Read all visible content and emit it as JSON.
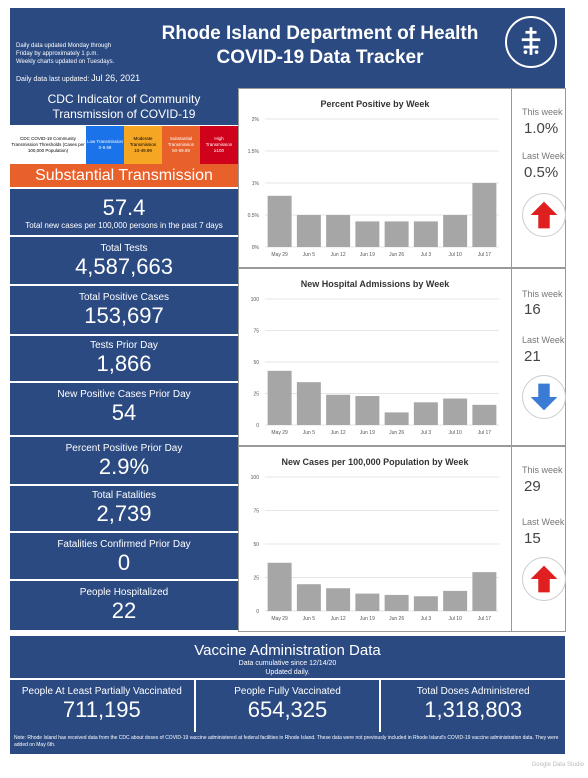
{
  "header": {
    "note1": "Daily data updated Monday through",
    "note2": "Friday by approximately 1 p.m.",
    "note3": "Weekly charts updated on Tuesdays.",
    "updated_label": "Daily data last updated:",
    "updated_date": "Jul 26, 2021",
    "title1": "Rhode Island Department of Health",
    "title2": "COVID-19 Data Tracker",
    "logo_text": "RHODE ISLAND DEPARTMENT OF HEALTH"
  },
  "cdc": {
    "title1": "CDC Indicator of Community",
    "title2": "Transmission of COVID-19",
    "thresholds_label": "CDC COVID-19 Community Transmission Thresholds (Cases per 100,000 Population)",
    "levels": [
      {
        "name": "Low Transmission",
        "range": "0-9.99",
        "color": "#1a73e8"
      },
      {
        "name": "Moderate Transmission",
        "range": "10-49.99",
        "color": "#f5a623"
      },
      {
        "name": "Substantial Transmission",
        "range": "50-99.99",
        "color": "#e8602a"
      },
      {
        "name": "High Transmission",
        "range": "≥100",
        "color": "#d0021b"
      }
    ],
    "status": "Substantial Transmission",
    "rate": "57.4",
    "rate_label": "Total new cases per 100,000 persons in the past 7 days"
  },
  "stats": [
    {
      "label": "Total Tests",
      "value": "4,587,663"
    },
    {
      "label": "Total Positive Cases",
      "value": "153,697"
    },
    {
      "label": "Tests Prior Day",
      "value": "1,866"
    },
    {
      "label": "New Positive Cases Prior Day",
      "value": "54"
    },
    {
      "label": "Percent Positive Prior Day",
      "value": "2.9%"
    },
    {
      "label": "Total Fatalities",
      "value": "2,739"
    },
    {
      "label": "Fatalities Confirmed Prior Day",
      "value": "0"
    },
    {
      "label": "People Hospitalized",
      "value": "22"
    }
  ],
  "side": [
    {
      "this_label": "This week",
      "this_value": "1.0%",
      "last_label": "Last Week",
      "last_value": "0.5%",
      "direction": "up"
    },
    {
      "this_label": "This week",
      "this_value": "16",
      "last_label": "Last Week",
      "last_value": "21",
      "direction": "down"
    },
    {
      "this_label": "This week",
      "this_value": "29",
      "last_label": "Last Week",
      "last_value": "15",
      "direction": "up"
    }
  ],
  "vax": {
    "title": "Vaccine Administration Data",
    "sub1": "Data cumulative since 12/14/20",
    "sub2": "Updated daily.",
    "cols": [
      {
        "label": "People At Least Partially Vaccinated",
        "value": "711,195"
      },
      {
        "label": "People Fully Vaccinated",
        "value": "654,325"
      },
      {
        "label": "Total Doses Administered",
        "value": "1,318,803"
      }
    ]
  },
  "footnote": "Note: Rhode Island has received data from the CDC about doses of COVID-19 vaccine administered at federal facilities in Rhode Island. These data were not previously included in Rhode Island's COVID-19 vaccine administration data. They were added on May 6th.",
  "chart_data": [
    {
      "type": "bar",
      "title": "Percent Positive by Week",
      "categories": [
        "May 29",
        "Jun 5",
        "Jun 12",
        "Jun 19",
        "Jun 26",
        "Jul 3",
        "Jul 10",
        "Jul 17"
      ],
      "values": [
        0.8,
        0.5,
        0.5,
        0.4,
        0.4,
        0.4,
        0.5,
        1.0
      ],
      "yticks": [
        "0%",
        "0.5%",
        "1%",
        "1.5%",
        "2%"
      ],
      "ylim": [
        0,
        2
      ],
      "color": "#a6a6a6"
    },
    {
      "type": "bar",
      "title": "New Hospital Admissions by Week",
      "categories": [
        "May 29",
        "Jun 5",
        "Jun 12",
        "Jun 19",
        "Jun 26",
        "Jul 3",
        "Jul 10",
        "Jul 17"
      ],
      "values": [
        43,
        34,
        24,
        23,
        10,
        18,
        21,
        16
      ],
      "yticks": [
        "0",
        "25",
        "50",
        "75",
        "100"
      ],
      "ylim": [
        0,
        100
      ],
      "color": "#a6a6a6"
    },
    {
      "type": "bar",
      "title": "New Cases per 100,000 Population by Week",
      "categories": [
        "May 29",
        "Jun 5",
        "Jun 12",
        "Jun 19",
        "Jun 26",
        "Jul 3",
        "Jul 10",
        "Jul 17"
      ],
      "values": [
        36,
        20,
        17,
        13,
        12,
        11,
        15,
        29
      ],
      "yticks": [
        "0",
        "25",
        "50",
        "75",
        "100"
      ],
      "ylim": [
        0,
        100
      ],
      "color": "#a6a6a6"
    }
  ],
  "watermark": "Google Data Studio"
}
